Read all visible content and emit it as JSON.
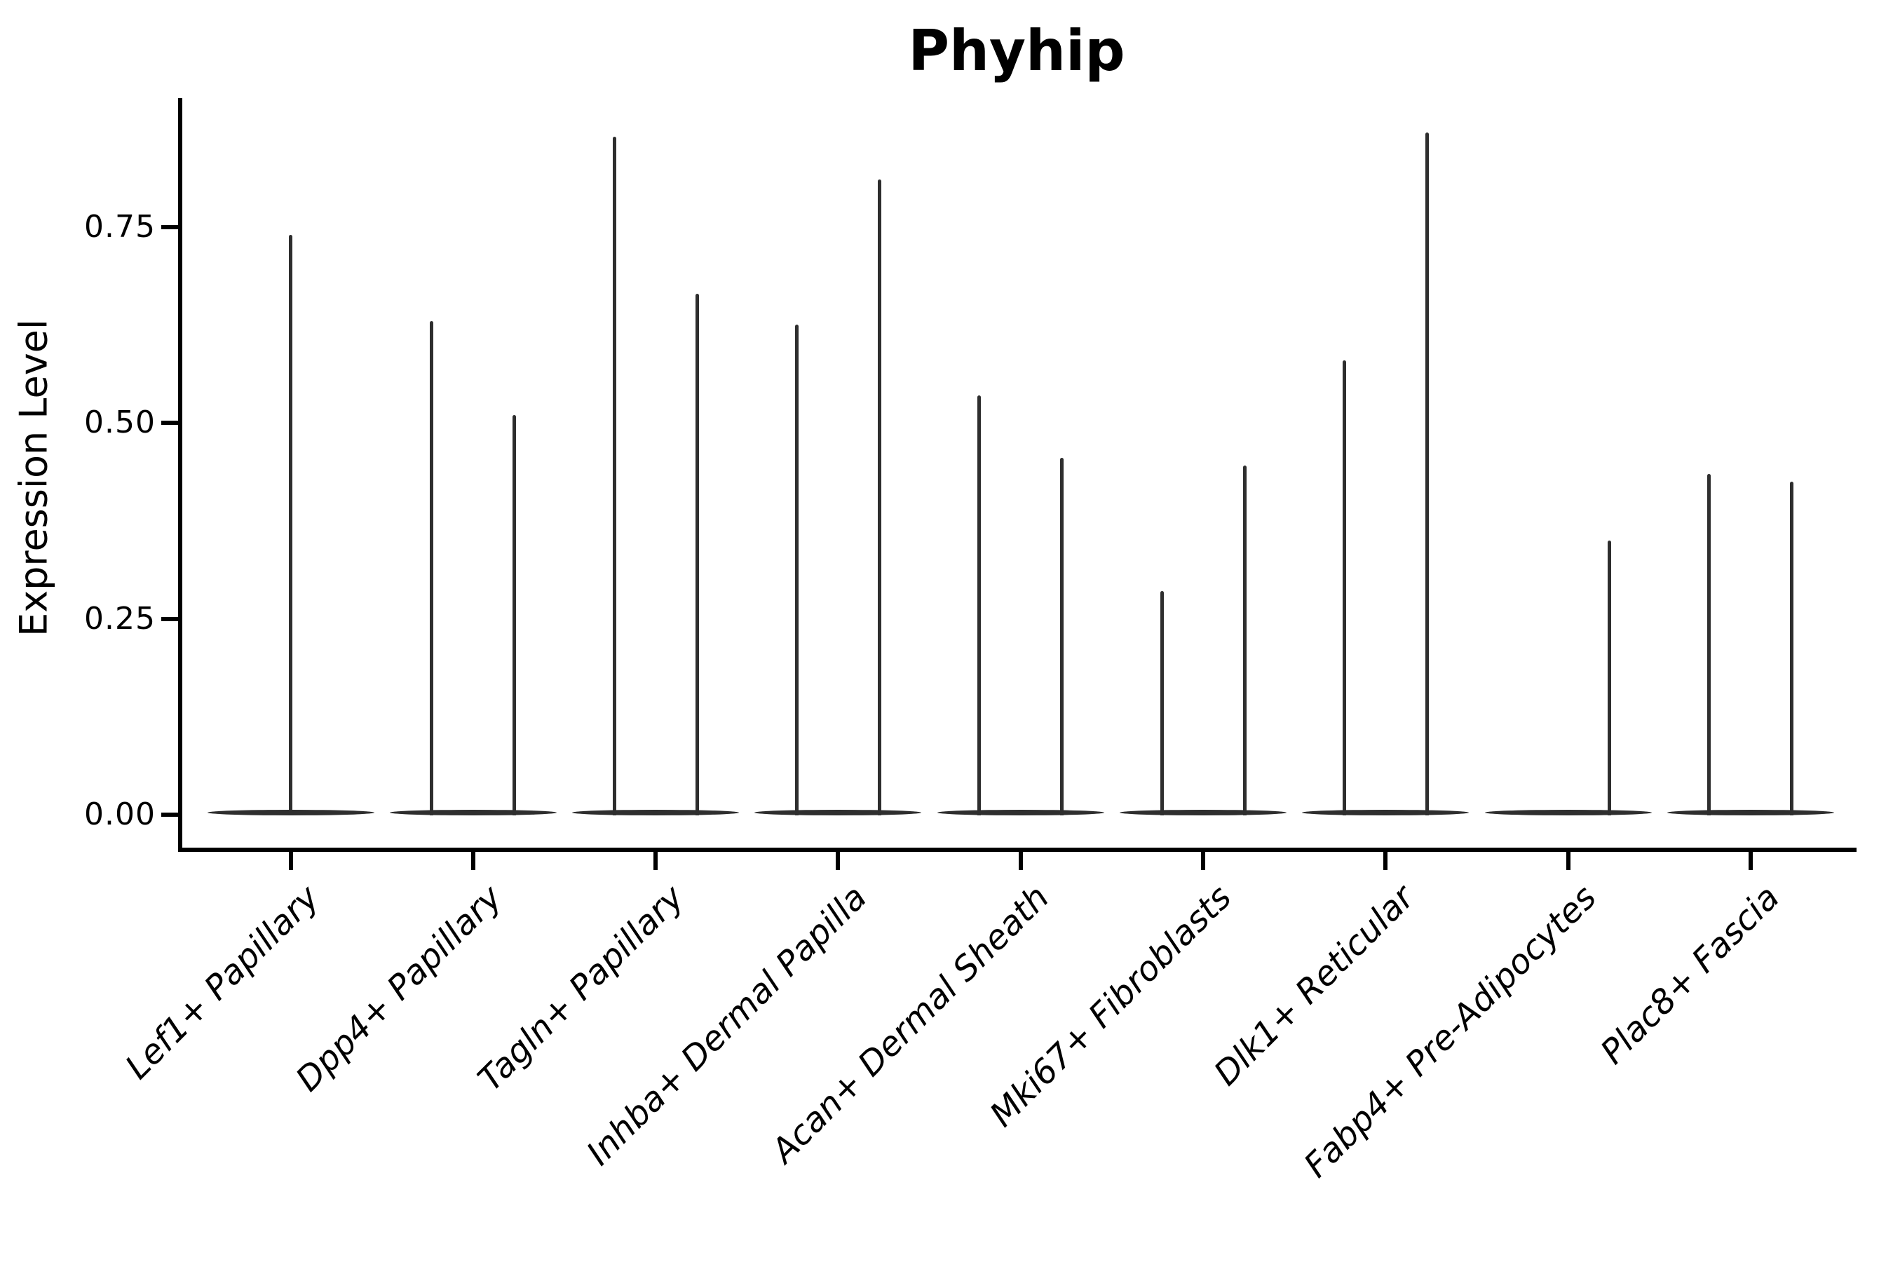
{
  "title": "Phyhip",
  "colors": {
    "background": "#ffffff",
    "axis": "#000000",
    "text": "#000000",
    "violin": "#2e2e2e"
  },
  "chart_data": {
    "type": "violin",
    "title": "Phyhip",
    "xlabel": "",
    "ylabel": "Expression Level",
    "ylim": [
      0,
      0.92
    ],
    "grid": false,
    "legend": "none",
    "yticks": [
      {
        "label": "0.00",
        "value": 0.0
      },
      {
        "label": "0.25",
        "value": 0.25
      },
      {
        "label": "0.50",
        "value": 0.5
      },
      {
        "label": "0.75",
        "value": 0.75
      }
    ],
    "categories": [
      "Lef1+ Papillary",
      "Dpp4+ Papillary",
      "Tagln+ Papillary",
      "Inhba+ Dermal Papilla",
      "Acan+ Dermal Sheath",
      "Mki67+ Fibroblasts",
      "Dlk1+ Reticular",
      "Fabp4+ Pre-Adipocytes",
      "Plac8+ Fascia"
    ],
    "violins": [
      {
        "category": "Lef1+ Papillary",
        "base_value": 0.0,
        "spikes": [
          {
            "position": "center",
            "max": 0.74
          }
        ]
      },
      {
        "category": "Dpp4+ Papillary",
        "base_value": 0.0,
        "spikes": [
          {
            "position": "left",
            "max": 0.63
          },
          {
            "position": "right",
            "max": 0.51
          }
        ]
      },
      {
        "category": "Tagln+ Papillary",
        "base_value": 0.0,
        "spikes": [
          {
            "position": "left",
            "max": 0.865
          },
          {
            "position": "right",
            "max": 0.665
          }
        ]
      },
      {
        "category": "Inhba+ Dermal Papilla",
        "base_value": 0.0,
        "spikes": [
          {
            "position": "left",
            "max": 0.625
          },
          {
            "position": "right",
            "max": 0.81
          }
        ]
      },
      {
        "category": "Acan+ Dermal Sheath",
        "base_value": 0.0,
        "spikes": [
          {
            "position": "left",
            "max": 0.535
          },
          {
            "position": "right",
            "max": 0.455
          }
        ]
      },
      {
        "category": "Mki67+ Fibroblasts",
        "base_value": 0.0,
        "spikes": [
          {
            "position": "left",
            "max": 0.285
          },
          {
            "position": "right",
            "max": 0.445
          }
        ]
      },
      {
        "category": "Dlk1+ Reticular",
        "base_value": 0.0,
        "spikes": [
          {
            "position": "left",
            "max": 0.58
          },
          {
            "position": "right",
            "max": 0.87
          }
        ]
      },
      {
        "category": "Fabp4+ Pre-Adipocytes",
        "base_value": 0.0,
        "spikes": [
          {
            "position": "right",
            "max": 0.35
          }
        ]
      },
      {
        "category": "Plac8+ Fascia",
        "base_value": 0.0,
        "spikes": [
          {
            "position": "left",
            "max": 0.435
          },
          {
            "position": "right",
            "max": 0.425
          }
        ]
      }
    ]
  }
}
